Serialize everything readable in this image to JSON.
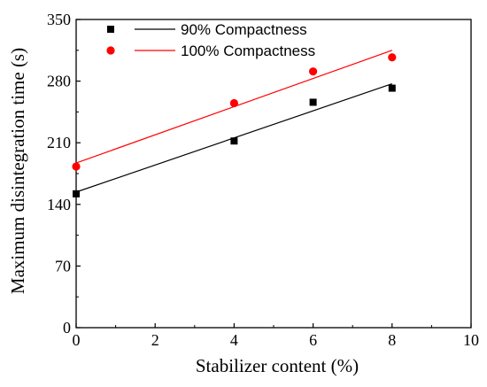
{
  "chart_data": {
    "type": "scatter",
    "xlabel": "Stabilizer content (%)",
    "ylabel": "Maximum disintegration time (s)",
    "xlim": [
      0,
      10
    ],
    "ylim": [
      0,
      350
    ],
    "xticks": [
      0,
      2,
      4,
      6,
      8,
      10
    ],
    "yticks": [
      0,
      70,
      140,
      210,
      280,
      350
    ],
    "grid": false,
    "legend_position": "top-left",
    "series": [
      {
        "name": "90% Compactness",
        "marker": "square",
        "color": "#000000",
        "x": [
          0,
          4,
          6,
          8
        ],
        "y": [
          152,
          212,
          256,
          272
        ],
        "fit": {
          "x": [
            0,
            8
          ],
          "y": [
            154,
            277
          ]
        }
      },
      {
        "name": "100% Compactness",
        "marker": "circle",
        "color": "#ff0000",
        "x": [
          0,
          4,
          6,
          8
        ],
        "y": [
          183,
          255,
          291,
          307
        ],
        "fit": {
          "x": [
            0,
            8
          ],
          "y": [
            187,
            315
          ]
        }
      }
    ]
  }
}
